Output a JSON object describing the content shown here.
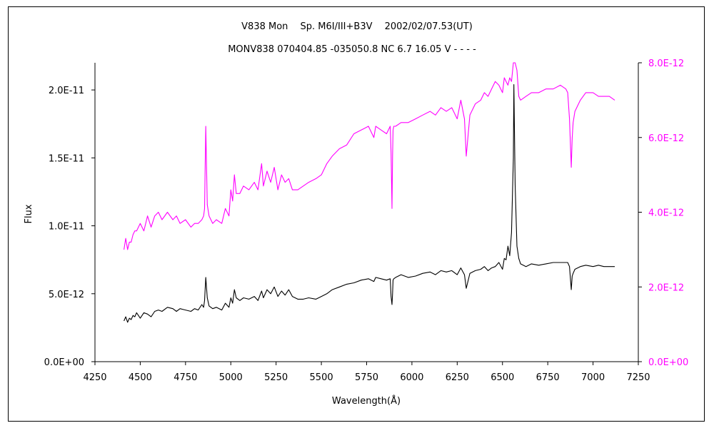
{
  "chart_data": {
    "type": "line",
    "title": "V838 Mon　 Sp. M6I/III+B3V　 2002/02/07.53(UT)",
    "subtitle": "MONV838 070404.85 -035050.8 NC 6.7 16.05 V - - - -",
    "xlabel": "Wavelength(Å)",
    "ylabel": "Flux",
    "xlim": [
      4250,
      7250
    ],
    "ylim": [
      0,
      2.2e-11
    ],
    "y2lim": [
      0,
      8e-12
    ],
    "x_ticks": [
      4250,
      4500,
      4750,
      5000,
      5250,
      5500,
      5750,
      6000,
      6250,
      6500,
      6750,
      7000,
      7250
    ],
    "x_tick_labels": [
      "4250",
      "4500",
      "4750",
      "5000",
      "5250",
      "5500",
      "5750",
      "6000",
      "6250",
      "6500",
      "6750",
      "7000",
      "7250"
    ],
    "y_ticks": [
      0,
      5e-12,
      1e-11,
      1.5e-11,
      2e-11
    ],
    "y_tick_labels": [
      "0.0E+00",
      "5.0E-12",
      "1.0E-11",
      "1.5E-11",
      "2.0E-11"
    ],
    "y2_ticks": [
      0,
      2e-12,
      4e-12,
      6e-12,
      8e-12
    ],
    "y2_tick_labels": [
      "0.0E+00",
      "2.0E-12",
      "4.0E-12",
      "6.0E-12",
      "8.0E-12"
    ],
    "grid": false,
    "legend": "none",
    "colors": {
      "primary": "#000000",
      "secondary": "#ff00ff"
    },
    "series": [
      {
        "axis": "left",
        "color": "#000000",
        "x": [
          4410,
          4420,
          4430,
          4440,
          4450,
          4460,
          4470,
          4480,
          4500,
          4520,
          4540,
          4560,
          4580,
          4600,
          4620,
          4650,
          4680,
          4700,
          4720,
          4750,
          4780,
          4800,
          4820,
          4840,
          4850,
          4855,
          4862,
          4870,
          4880,
          4900,
          4920,
          4950,
          4970,
          4990,
          5000,
          5010,
          5020,
          5030,
          5050,
          5070,
          5100,
          5130,
          5150,
          5170,
          5180,
          5200,
          5220,
          5240,
          5260,
          5280,
          5300,
          5320,
          5340,
          5370,
          5400,
          5430,
          5470,
          5500,
          5530,
          5560,
          5600,
          5640,
          5680,
          5720,
          5760,
          5790,
          5800,
          5830,
          5860,
          5880,
          5885,
          5890,
          5893,
          5896,
          5900,
          5910,
          5940,
          5980,
          6020,
          6060,
          6100,
          6130,
          6160,
          6190,
          6220,
          6250,
          6270,
          6290,
          6300,
          6320,
          6350,
          6380,
          6400,
          6420,
          6440,
          6460,
          6480,
          6500,
          6510,
          6520,
          6530,
          6540,
          6550,
          6560,
          6563,
          6570,
          6580,
          6590,
          6600,
          6630,
          6660,
          6700,
          6740,
          6780,
          6820,
          6850,
          6860,
          6870,
          6880,
          6885,
          6890,
          6900,
          6930,
          6960,
          7000,
          7030,
          7060,
          7090,
          7120
        ],
        "y": [
          3e-12,
          3.3e-12,
          2.9e-12,
          3.2e-12,
          3.1e-12,
          3.4e-12,
          3.3e-12,
          3.6e-12,
          3.2e-12,
          3.6e-12,
          3.5e-12,
          3.3e-12,
          3.7e-12,
          3.8e-12,
          3.7e-12,
          4e-12,
          3.9e-12,
          3.7e-12,
          3.9e-12,
          3.8e-12,
          3.7e-12,
          3.9e-12,
          3.8e-12,
          4.2e-12,
          4e-12,
          4.5e-12,
          6.2e-12,
          4.7e-12,
          4.1e-12,
          3.9e-12,
          4e-12,
          3.8e-12,
          4.3e-12,
          4e-12,
          4.7e-12,
          4.3e-12,
          5.3e-12,
          4.7e-12,
          4.5e-12,
          4.7e-12,
          4.6e-12,
          4.8e-12,
          4.5e-12,
          5.2e-12,
          4.7e-12,
          5.3e-12,
          5e-12,
          5.5e-12,
          4.8e-12,
          5.2e-12,
          4.9e-12,
          5.3e-12,
          4.8e-12,
          4.6e-12,
          4.6e-12,
          4.7e-12,
          4.6e-12,
          4.8e-12,
          5e-12,
          5.3e-12,
          5.5e-12,
          5.7e-12,
          5.8e-12,
          6e-12,
          6.1e-12,
          5.9e-12,
          6.2e-12,
          6.1e-12,
          6e-12,
          6.1e-12,
          4.8e-12,
          4.2e-12,
          5e-12,
          6e-12,
          6.1e-12,
          6.2e-12,
          6.4e-12,
          6.2e-12,
          6.3e-12,
          6.5e-12,
          6.6e-12,
          6.4e-12,
          6.7e-12,
          6.6e-12,
          6.7e-12,
          6.4e-12,
          6.9e-12,
          6.4e-12,
          5.4e-12,
          6.5e-12,
          6.7e-12,
          6.8e-12,
          7e-12,
          6.7e-12,
          6.9e-12,
          7e-12,
          7.3e-12,
          6.8e-12,
          7.6e-12,
          7.5e-12,
          8.5e-12,
          7.8e-12,
          9.5e-12,
          1.5e-11,
          2.04e-11,
          1.3e-11,
          8.5e-12,
          7.6e-12,
          7.2e-12,
          7e-12,
          7.2e-12,
          7.1e-12,
          7.2e-12,
          7.3e-12,
          7.3e-12,
          7.3e-12,
          7.3e-12,
          7e-12,
          5.3e-12,
          6.3e-12,
          6.5e-12,
          6.8e-12,
          7e-12,
          7.1e-12,
          7e-12,
          7.1e-12,
          7e-12,
          7e-12,
          7e-12
        ]
      },
      {
        "axis": "right",
        "color": "#ff00ff",
        "x": [
          4410,
          4420,
          4430,
          4440,
          4450,
          4460,
          4470,
          4480,
          4500,
          4520,
          4540,
          4560,
          4580,
          4600,
          4620,
          4650,
          4680,
          4700,
          4720,
          4750,
          4780,
          4800,
          4820,
          4840,
          4850,
          4855,
          4862,
          4870,
          4880,
          4900,
          4920,
          4950,
          4970,
          4990,
          5000,
          5010,
          5020,
          5030,
          5050,
          5070,
          5100,
          5130,
          5150,
          5170,
          5180,
          5200,
          5220,
          5240,
          5260,
          5280,
          5300,
          5320,
          5340,
          5370,
          5400,
          5430,
          5470,
          5500,
          5530,
          5560,
          5600,
          5640,
          5680,
          5720,
          5760,
          5790,
          5800,
          5830,
          5860,
          5880,
          5885,
          5890,
          5893,
          5896,
          5900,
          5910,
          5940,
          5980,
          6020,
          6060,
          6100,
          6130,
          6160,
          6190,
          6220,
          6250,
          6270,
          6290,
          6300,
          6320,
          6350,
          6380,
          6400,
          6420,
          6440,
          6460,
          6480,
          6500,
          6510,
          6520,
          6530,
          6540,
          6550,
          6560,
          6563,
          6570,
          6580,
          6590,
          6600,
          6630,
          6660,
          6700,
          6740,
          6780,
          6820,
          6850,
          6860,
          6870,
          6880,
          6885,
          6890,
          6900,
          6930,
          6960,
          7000,
          7030,
          7060,
          7090,
          7120
        ],
        "y": [
          3e-12,
          3.3e-12,
          3e-12,
          3.2e-12,
          3.2e-12,
          3.4e-12,
          3.5e-12,
          3.5e-12,
          3.7e-12,
          3.5e-12,
          3.9e-12,
          3.6e-12,
          3.9e-12,
          4e-12,
          3.8e-12,
          4e-12,
          3.8e-12,
          3.9e-12,
          3.7e-12,
          3.8e-12,
          3.6e-12,
          3.7e-12,
          3.7e-12,
          3.8e-12,
          3.9e-12,
          4.1e-12,
          6.3e-12,
          4.2e-12,
          3.9e-12,
          3.7e-12,
          3.8e-12,
          3.7e-12,
          4.1e-12,
          3.9e-12,
          4.6e-12,
          4.3e-12,
          5e-12,
          4.5e-12,
          4.5e-12,
          4.7e-12,
          4.6e-12,
          4.8e-12,
          4.6e-12,
          5.3e-12,
          4.7e-12,
          5.1e-12,
          4.8e-12,
          5.2e-12,
          4.6e-12,
          5e-12,
          4.8e-12,
          4.9e-12,
          4.6e-12,
          4.6e-12,
          4.7e-12,
          4.8e-12,
          4.9e-12,
          5e-12,
          5.3e-12,
          5.5e-12,
          5.7e-12,
          5.8e-12,
          6.1e-12,
          6.2e-12,
          6.3e-12,
          6e-12,
          6.3e-12,
          6.2e-12,
          6.1e-12,
          6.3e-12,
          5.6e-12,
          4.1e-12,
          5.5e-12,
          6.2e-12,
          6.3e-12,
          6.3e-12,
          6.4e-12,
          6.4e-12,
          6.5e-12,
          6.6e-12,
          6.7e-12,
          6.6e-12,
          6.8e-12,
          6.7e-12,
          6.8e-12,
          6.5e-12,
          7e-12,
          6.5e-12,
          5.5e-12,
          6.6e-12,
          6.9e-12,
          7e-12,
          7.2e-12,
          7.1e-12,
          7.3e-12,
          7.5e-12,
          7.4e-12,
          7.2e-12,
          7.6e-12,
          7.5e-12,
          7.4e-12,
          7.6e-12,
          7.5e-12,
          8.4e-12,
          9e-12,
          8.6e-12,
          7.8e-12,
          7.1e-12,
          7e-12,
          7.1e-12,
          7.2e-12,
          7.2e-12,
          7.3e-12,
          7.3e-12,
          7.4e-12,
          7.3e-12,
          7.2e-12,
          6.5e-12,
          5.2e-12,
          6e-12,
          6.4e-12,
          6.7e-12,
          7e-12,
          7.2e-12,
          7.2e-12,
          7.1e-12,
          7.1e-12,
          7.1e-12,
          7e-12
        ]
      }
    ]
  }
}
